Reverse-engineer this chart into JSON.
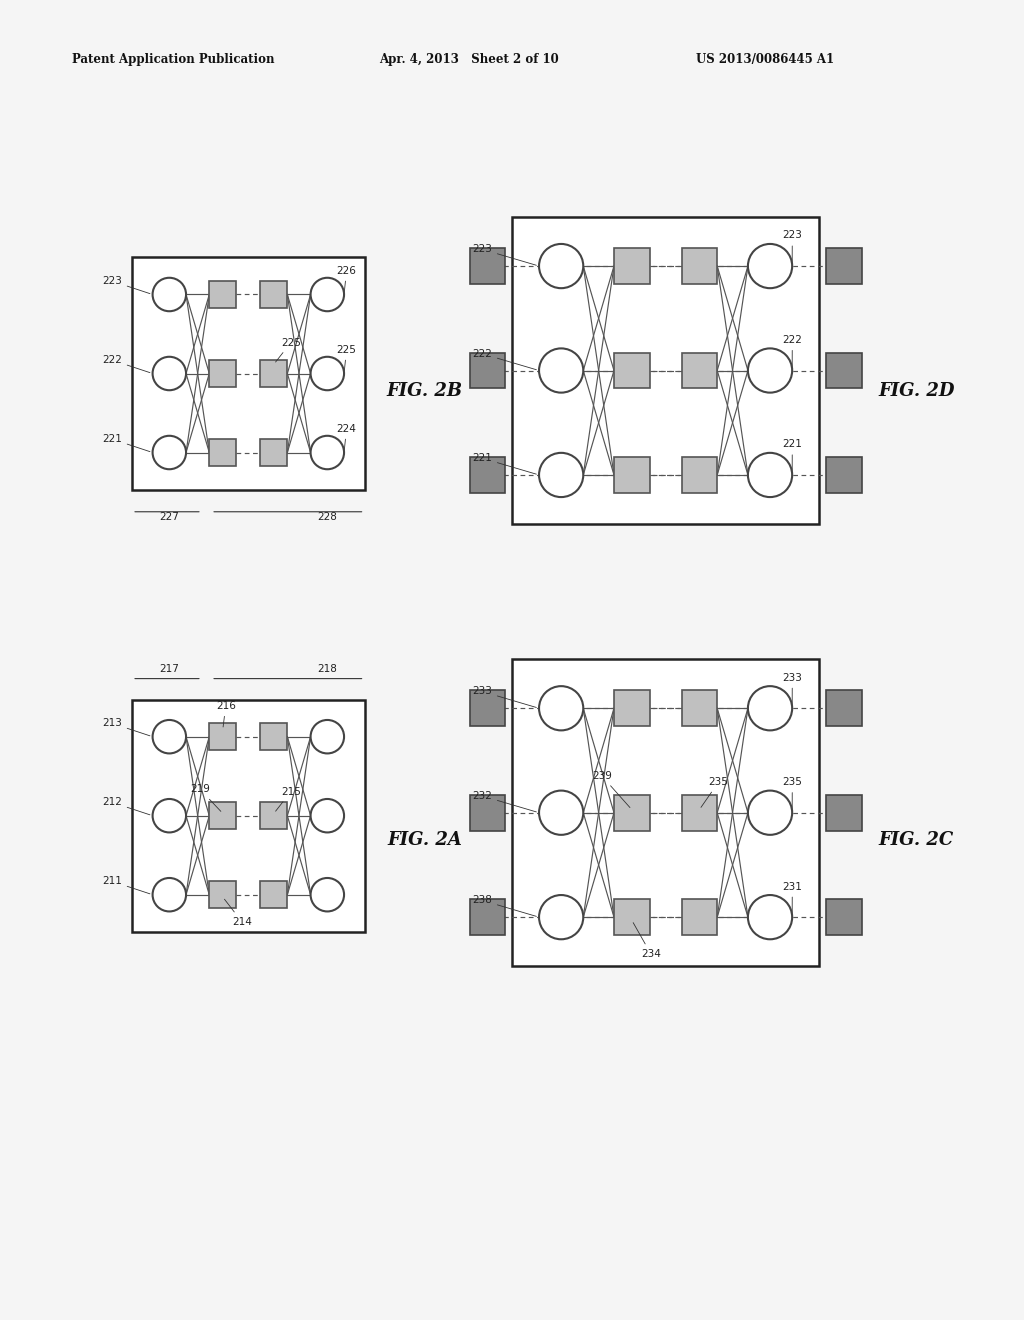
{
  "bg_color": "#f5f5f5",
  "header_left": "Patent Application Publication",
  "header_mid": "Apr. 4, 2013   Sheet 2 of 10",
  "header_right": "US 2013/0086445 A1",
  "line_color": "#555555",
  "circle_fc": "#ffffff",
  "circle_ec": "#444444",
  "sq_light_fc": "#c0c0c0",
  "sq_light_ec": "#555555",
  "sq_dark_fc": "#888888",
  "sq_dark_ec": "#444444",
  "box_ec": "#222222"
}
